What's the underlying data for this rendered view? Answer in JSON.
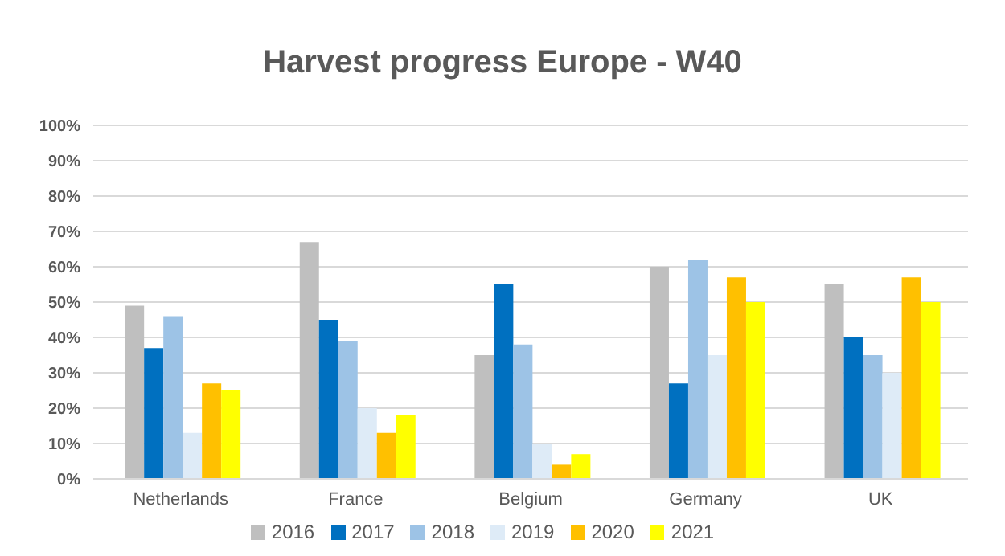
{
  "chart_data": {
    "type": "bar",
    "title": "Harvest progress Europe - W40",
    "categories": [
      "Netherlands",
      "France",
      "Belgium",
      "Germany",
      "UK"
    ],
    "series": [
      {
        "name": "2016",
        "color": "#bfbfbf",
        "values": [
          49,
          67,
          35,
          60,
          55
        ]
      },
      {
        "name": "2017",
        "color": "#0070c0",
        "values": [
          37,
          45,
          55,
          27,
          40
        ]
      },
      {
        "name": "2018",
        "color": "#9dc3e6",
        "values": [
          46,
          39,
          38,
          62,
          35
        ]
      },
      {
        "name": "2019",
        "color": "#deebf7",
        "values": [
          13,
          20,
          10,
          35,
          30
        ]
      },
      {
        "name": "2020",
        "color": "#ffc000",
        "values": [
          27,
          13,
          4,
          57,
          57
        ]
      },
      {
        "name": "2021",
        "color": "#ffff00",
        "values": [
          25,
          18,
          7,
          50,
          50
        ]
      }
    ],
    "ylim": [
      0,
      100
    ],
    "yticks": [
      {
        "value": 0,
        "label": "0%"
      },
      {
        "value": 10,
        "label": "10%"
      },
      {
        "value": 20,
        "label": "20%"
      },
      {
        "value": 30,
        "label": "30%"
      },
      {
        "value": 40,
        "label": "40%"
      },
      {
        "value": 50,
        "label": "50%"
      },
      {
        "value": 60,
        "label": "60%"
      },
      {
        "value": 70,
        "label": "70%"
      },
      {
        "value": 80,
        "label": "80%"
      },
      {
        "value": 90,
        "label": "90%"
      },
      {
        "value": 100,
        "label": "100%"
      }
    ],
    "grid": "y",
    "legend": "bottom"
  }
}
